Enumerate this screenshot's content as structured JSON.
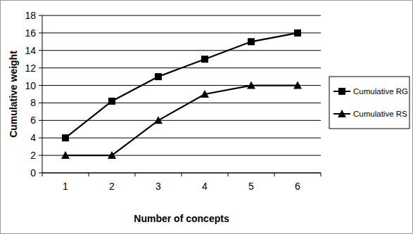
{
  "chart_data": {
    "type": "line",
    "x_label": "Number of concepts",
    "y_label": "Cumulative weight",
    "categories": [
      "1",
      "2",
      "3",
      "4",
      "5",
      "6"
    ],
    "series": [
      {
        "name": "Cumulative RG",
        "color": "#000000",
        "marker": "square",
        "values": [
          4,
          8.2,
          11,
          13,
          15,
          16
        ]
      },
      {
        "name": "Cumulative RS",
        "color": "#000000",
        "marker": "triangle",
        "values": [
          2,
          2,
          6,
          9,
          10,
          10
        ]
      }
    ],
    "ylim": [
      0,
      18
    ],
    "yticks": [
      0,
      2,
      4,
      6,
      8,
      10,
      12,
      14,
      16,
      18
    ],
    "grid": true,
    "legend": "right"
  }
}
